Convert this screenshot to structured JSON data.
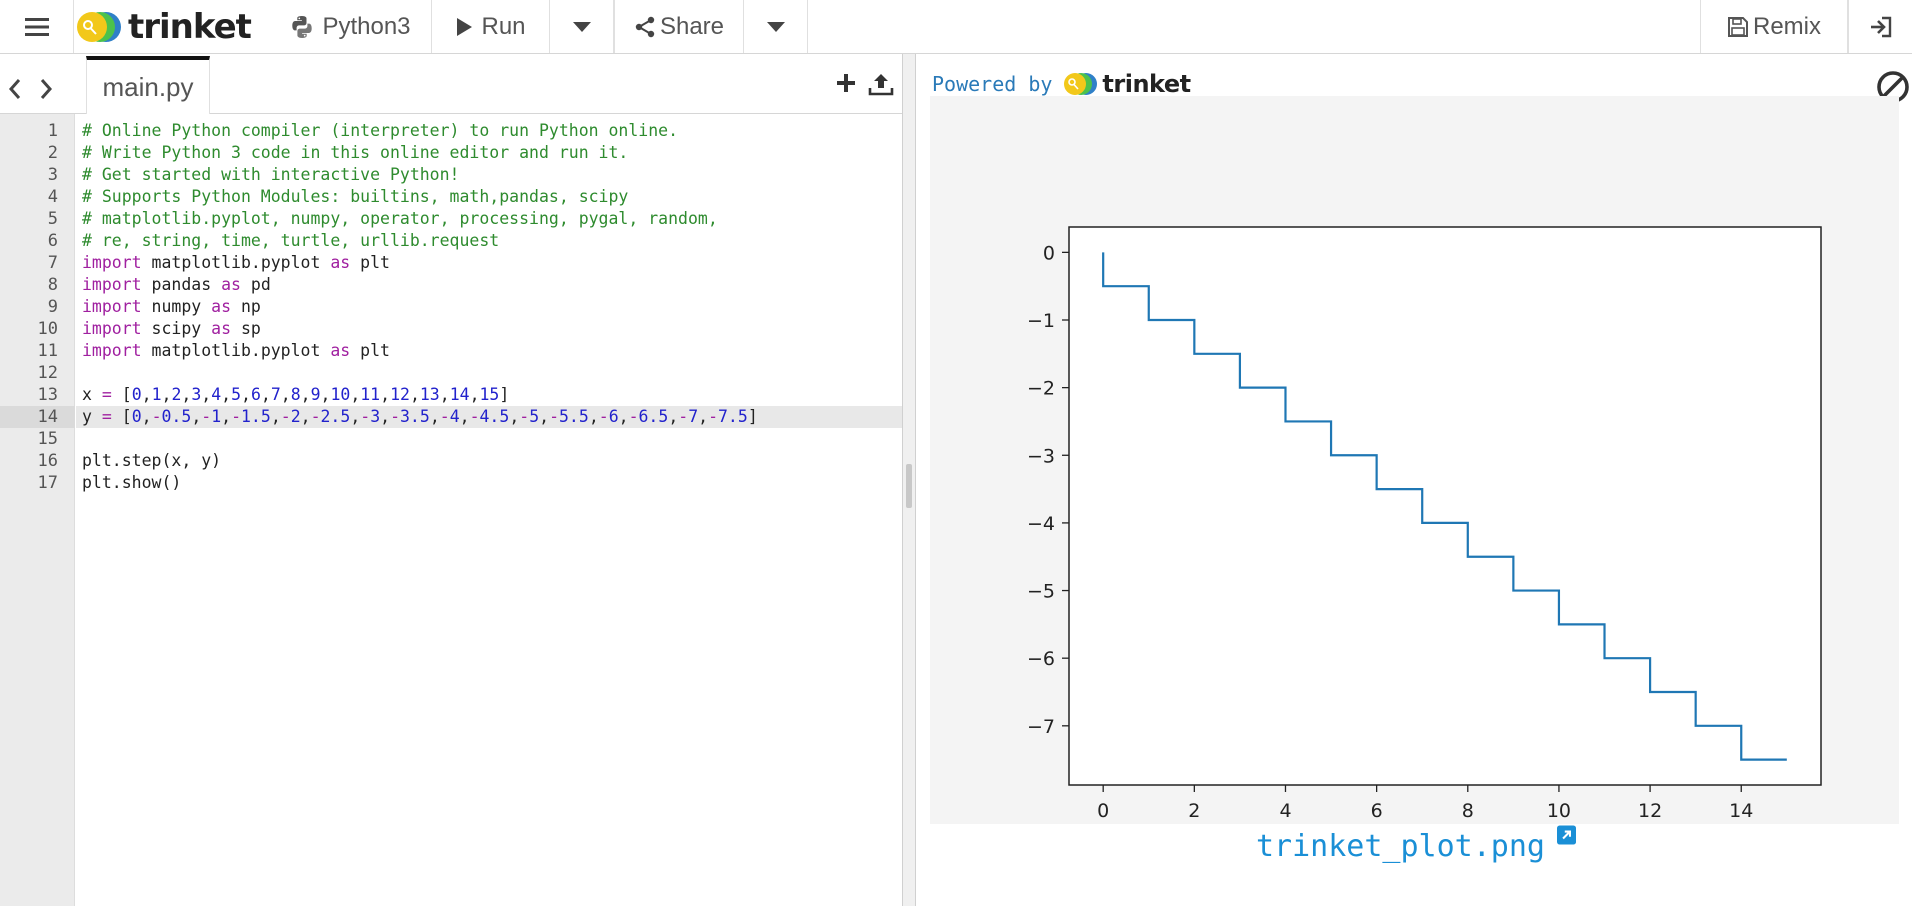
{
  "toolbar": {
    "logo_text": "trinket",
    "language": "Python3",
    "run_label": "Run",
    "share_label": "Share",
    "remix_label": "Remix"
  },
  "editor": {
    "tab_name": "main.py",
    "active_line": 14,
    "lines": [
      "# Online Python compiler (interpreter) to run Python online.",
      "# Write Python 3 code in this online editor and run it.",
      "# Get started with interactive Python!",
      "# Supports Python Modules: builtins, math,pandas, scipy",
      "# matplotlib.pyplot, numpy, operator, processing, pygal, random,",
      "# re, string, time, turtle, urllib.request",
      "import matplotlib.pyplot as plt",
      "import pandas as pd",
      "import numpy as np",
      "import scipy as sp",
      "import matplotlib.pyplot as plt",
      "",
      "x = [0,1,2,3,4,5,6,7,8,9,10,11,12,13,14,15]",
      "y = [0,-0.5,-1,-1.5,-2,-2.5,-3,-3.5,-4,-4.5,-5,-5.5,-6,-6.5,-7,-7.5]",
      "",
      "plt.step(x, y)",
      "plt.show()"
    ]
  },
  "output": {
    "powered_by": "Powered by",
    "powered_logo": "trinket",
    "plot_filename": "trinket_plot.png"
  },
  "colors": {
    "line": "#1f77b4",
    "comment": "#2e8b2e",
    "keyword": "#a020a0",
    "number": "#2222cc",
    "link": "#1a8fd6"
  },
  "chart_data": {
    "type": "line",
    "drawstyle": "steps-pre",
    "x": [
      0,
      1,
      2,
      3,
      4,
      5,
      6,
      7,
      8,
      9,
      10,
      11,
      12,
      13,
      14,
      15
    ],
    "y": [
      0,
      -0.5,
      -1,
      -1.5,
      -2,
      -2.5,
      -3,
      -3.5,
      -4,
      -4.5,
      -5,
      -5.5,
      -6,
      -6.5,
      -7,
      -7.5
    ],
    "xlim": [
      -0.75,
      15.75
    ],
    "ylim": [
      -7.875,
      0.375
    ],
    "xticks": [
      0,
      2,
      4,
      6,
      8,
      10,
      12,
      14
    ],
    "yticks": [
      0,
      -1,
      -2,
      -3,
      -4,
      -5,
      -6,
      -7
    ],
    "xtick_labels": [
      "0",
      "2",
      "4",
      "6",
      "8",
      "10",
      "12",
      "14"
    ],
    "ytick_labels": [
      "0",
      "−1",
      "−2",
      "−3",
      "−4",
      "−5",
      "−6",
      "−7"
    ],
    "grid": false,
    "legend": "none"
  }
}
